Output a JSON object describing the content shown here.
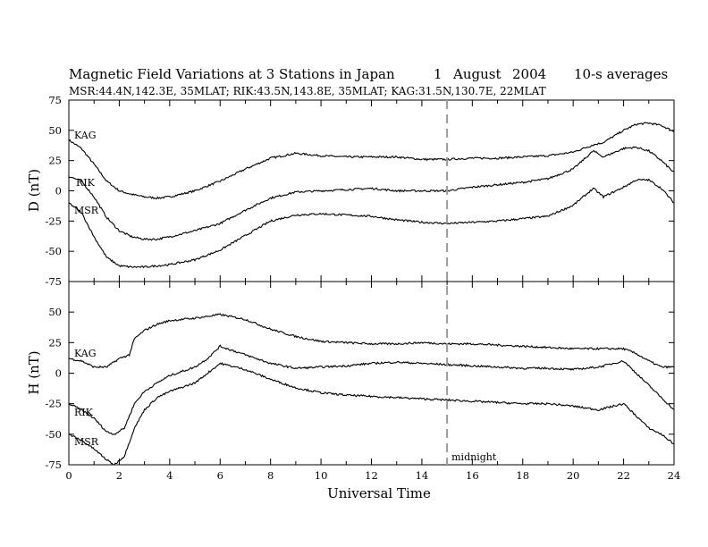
{
  "figure": {
    "title": "Magnetic Field Variations at 3 Stations in Japan",
    "date_day": "1",
    "date_month": "August",
    "date_year": "2004",
    "averaging": "10-s averages",
    "stations_line": "MSR:44.4N,142.3E, 35MLAT;  RIK:43.5N,143.8E, 35MLAT;  KAG:31.5N,130.7E, 22MLAT",
    "xlabel": "Universal Time",
    "midnight_label": "midnight",
    "colors": {
      "trace": "#000000",
      "midnight_line": "#9a9a9a",
      "frame": "#000000"
    }
  },
  "chart_data": [
    {
      "type": "line",
      "ylabel": "D (nT)",
      "xlim": [
        0,
        24
      ],
      "ylim": [
        -75,
        75
      ],
      "xticks": [
        0,
        2,
        4,
        6,
        8,
        10,
        12,
        14,
        16,
        18,
        20,
        22,
        24
      ],
      "yticks": [
        -75,
        -50,
        -25,
        0,
        25,
        50,
        75
      ],
      "vline_x": 15,
      "series": [
        {
          "name": "KAG",
          "x": [
            0,
            0.5,
            1,
            1.5,
            2,
            2.5,
            3,
            3.5,
            4,
            5,
            6,
            7,
            8,
            9,
            10,
            11,
            12,
            13,
            14,
            15,
            16,
            17,
            18,
            19,
            20,
            20.8,
            21.2,
            22,
            22.5,
            23,
            23.5,
            24
          ],
          "y": [
            42,
            35,
            22,
            8,
            0,
            -3,
            -5,
            -6,
            -5,
            0,
            8,
            18,
            27,
            31,
            29,
            28,
            28,
            28,
            26,
            26,
            27,
            27,
            28,
            29,
            32,
            38,
            40,
            50,
            55,
            56,
            54,
            49
          ]
        },
        {
          "name": "RIK",
          "x": [
            0,
            0.5,
            1,
            1.5,
            2,
            2.5,
            3,
            3.5,
            4,
            5,
            6,
            7,
            8,
            9,
            10,
            11,
            12,
            13,
            14,
            15,
            16,
            17,
            18,
            19,
            20,
            20.8,
            21.2,
            22,
            22.5,
            23,
            23.5,
            24
          ],
          "y": [
            12,
            8,
            -5,
            -22,
            -33,
            -38,
            -40,
            -40,
            -38,
            -33,
            -27,
            -16,
            -6,
            -1,
            0,
            1,
            2,
            0,
            0,
            0,
            3,
            5,
            7,
            10,
            18,
            33,
            28,
            35,
            36,
            33,
            25,
            15
          ]
        },
        {
          "name": "MSR",
          "x": [
            0,
            0.5,
            1,
            1.5,
            2,
            2.5,
            3,
            3.5,
            4,
            5,
            6,
            7,
            8,
            9,
            10,
            11,
            12,
            13,
            14,
            15,
            16,
            17,
            18,
            19,
            20,
            20.8,
            21.2,
            22,
            22.5,
            23,
            23.5,
            24
          ],
          "y": [
            -10,
            -18,
            -38,
            -55,
            -62,
            -63,
            -63,
            -62,
            -61,
            -57,
            -49,
            -37,
            -25,
            -20,
            -19,
            -20,
            -21,
            -24,
            -26,
            -27,
            -26,
            -25,
            -23,
            -21,
            -12,
            2,
            -5,
            3,
            9,
            9,
            2,
            -10
          ]
        }
      ]
    },
    {
      "type": "line",
      "ylabel": "H (nT)",
      "xlim": [
        0,
        24
      ],
      "ylim": [
        -75,
        75
      ],
      "xticks": [
        0,
        2,
        4,
        6,
        8,
        10,
        12,
        14,
        16,
        18,
        20,
        22,
        24
      ],
      "yticks": [
        -75,
        -50,
        -25,
        0,
        25,
        50,
        75
      ],
      "vline_x": 15,
      "series": [
        {
          "name": "KAG",
          "x": [
            0,
            0.5,
            1,
            1.5,
            2,
            2.4,
            2.6,
            3,
            3.5,
            4,
            5,
            6,
            7,
            8,
            9,
            10,
            11,
            12,
            13,
            14,
            15,
            16,
            17,
            18,
            19,
            20,
            21,
            22,
            22.5,
            23,
            23.5,
            24
          ],
          "y": [
            12,
            10,
            5,
            5,
            12,
            15,
            28,
            35,
            40,
            43,
            45,
            48,
            44,
            36,
            30,
            26,
            25,
            24,
            24,
            25,
            24,
            24,
            23,
            22,
            21,
            20,
            20,
            20,
            16,
            10,
            5,
            5
          ]
        },
        {
          "name": "RIK",
          "x": [
            0,
            0.5,
            1,
            1.5,
            1.8,
            2.2,
            2.6,
            3,
            3.5,
            4,
            5,
            5.5,
            6,
            7,
            8,
            9,
            10,
            11,
            12,
            13,
            14,
            15,
            16,
            17,
            18,
            19,
            20,
            21,
            22,
            22.5,
            23,
            23.5,
            24
          ],
          "y": [
            -25,
            -30,
            -37,
            -48,
            -50,
            -45,
            -25,
            -15,
            -8,
            -2,
            5,
            12,
            22,
            15,
            8,
            4,
            5,
            6,
            8,
            9,
            8,
            7,
            6,
            5,
            4,
            4,
            3,
            5,
            10,
            0,
            -10,
            -20,
            -30
          ]
        },
        {
          "name": "MSR",
          "x": [
            0,
            0.5,
            1,
            1.5,
            1.8,
            2.2,
            2.6,
            3,
            3.5,
            4,
            5,
            5.5,
            6,
            7,
            8,
            9,
            10,
            11,
            12,
            13,
            14,
            15,
            16,
            17,
            18,
            19,
            20,
            21,
            22,
            22.5,
            23,
            23.5,
            24
          ],
          "y": [
            -50,
            -55,
            -62,
            -71,
            -75,
            -68,
            -45,
            -30,
            -20,
            -15,
            -8,
            0,
            8,
            3,
            -5,
            -12,
            -16,
            -18,
            -19,
            -20,
            -21,
            -22,
            -23,
            -24,
            -25,
            -25,
            -27,
            -30,
            -25,
            -35,
            -45,
            -50,
            -58
          ]
        }
      ]
    }
  ]
}
